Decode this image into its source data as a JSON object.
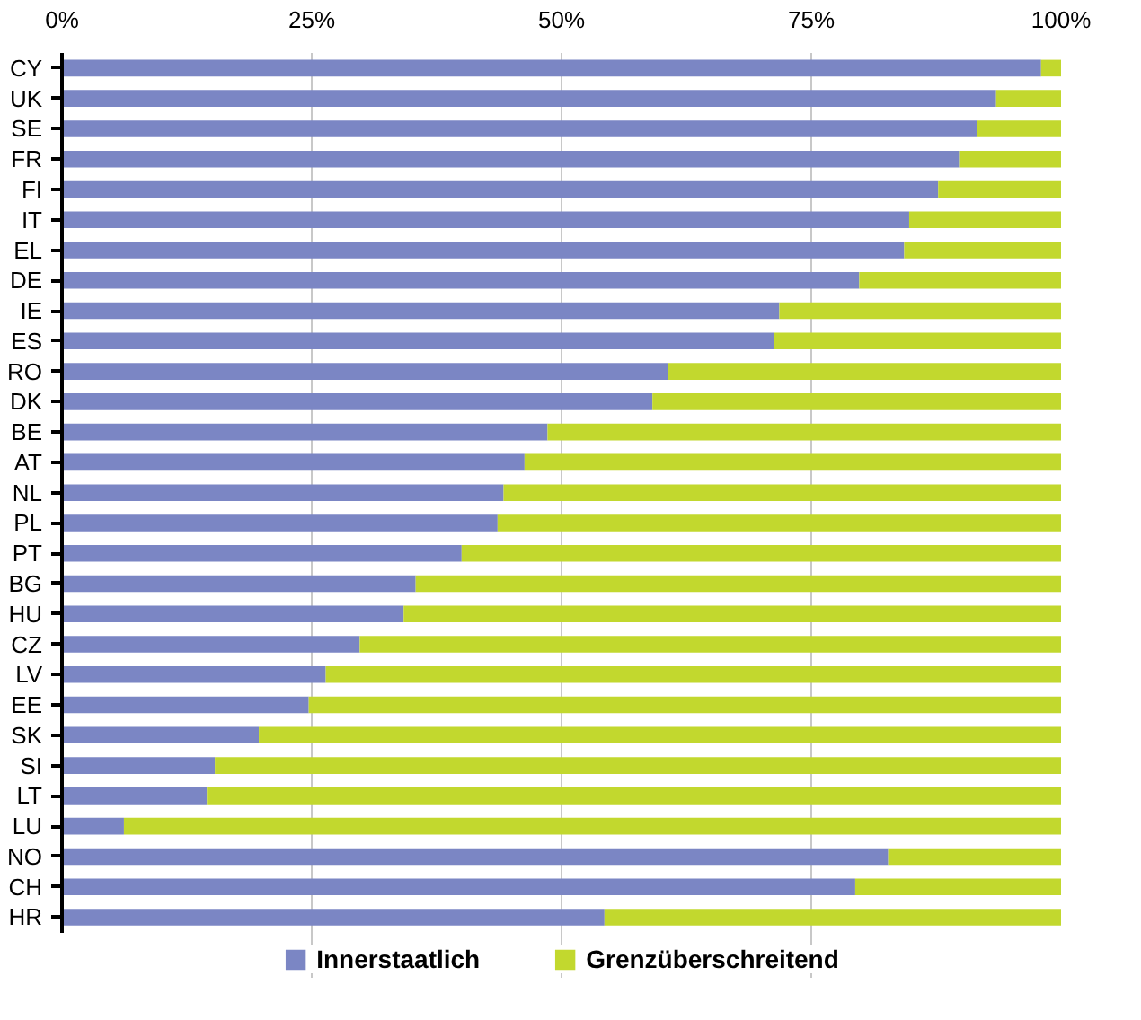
{
  "chart_data": {
    "type": "bar",
    "orientation": "horizontal",
    "stacked": true,
    "categories": [
      "CY",
      "UK",
      "SE",
      "FR",
      "FI",
      "IT",
      "EL",
      "DE",
      "IE",
      "ES",
      "RO",
      "DK",
      "BE",
      "AT",
      "NL",
      "PL",
      "PT",
      "BG",
      "HU",
      "CZ",
      "LV",
      "EE",
      "SK",
      "SI",
      "LT",
      "LU",
      "NO",
      "CH",
      "HR"
    ],
    "series": [
      {
        "name": "Innerstaatlich",
        "color": "#7b86c4",
        "values": [
          98.0,
          93.5,
          91.6,
          89.8,
          87.7,
          84.8,
          84.3,
          79.8,
          71.8,
          71.3,
          60.7,
          59.1,
          48.6,
          46.3,
          44.2,
          43.6,
          40.0,
          35.4,
          34.2,
          29.8,
          26.4,
          24.7,
          19.7,
          15.3,
          14.5,
          6.2,
          82.7,
          79.4,
          54.3
        ]
      },
      {
        "name": "Grenzüberschreitend",
        "color": "#c2d82e",
        "values": [
          2.0,
          6.5,
          8.4,
          10.2,
          12.3,
          15.2,
          15.7,
          20.2,
          28.2,
          28.7,
          39.3,
          40.9,
          51.4,
          53.7,
          55.8,
          56.4,
          60.0,
          64.6,
          65.8,
          70.2,
          73.6,
          75.3,
          80.3,
          84.7,
          85.5,
          93.8,
          17.3,
          20.6,
          45.7
        ]
      }
    ],
    "xlim": [
      0,
      100
    ],
    "xticks": [
      {
        "value": 0,
        "label": "0%"
      },
      {
        "value": 25,
        "label": "25%"
      },
      {
        "value": 50,
        "label": "50%"
      },
      {
        "value": 75,
        "label": "75%"
      },
      {
        "value": 100,
        "label": "100%"
      }
    ],
    "grid": "x",
    "legend": "bottom"
  }
}
